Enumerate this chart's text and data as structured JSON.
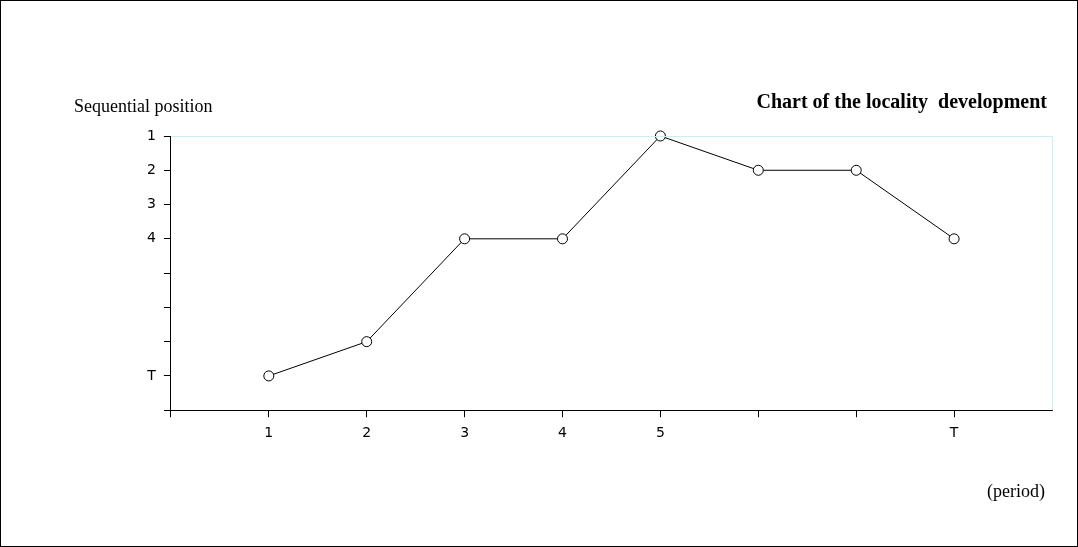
{
  "chart_data": {
    "type": "line",
    "title": "Chart of the locality  development",
    "xlabel": "(period)",
    "ylabel": "Sequential position",
    "x": [
      1,
      2,
      3,
      4,
      5,
      6,
      7,
      8
    ],
    "series": [
      {
        "color": "#000000",
        "values": [
          8,
          7,
          4,
          4,
          1,
          2,
          2,
          4
        ]
      }
    ],
    "xlim": [
      0,
      9
    ],
    "xticks": [
      {
        "value": 0,
        "label": null
      },
      1,
      2,
      3,
      4,
      5,
      {
        "value": 6,
        "label": null
      },
      {
        "value": 7,
        "label": null
      },
      {
        "value": 8,
        "label": "T"
      }
    ],
    "ylim": [
      9,
      1
    ],
    "yticks": [
      1,
      2,
      3,
      4,
      {
        "value": 5,
        "label": null
      },
      {
        "value": 6,
        "label": null
      },
      {
        "value": 7,
        "label": null
      },
      {
        "value": 8,
        "label": "T"
      },
      {
        "value": 9,
        "label": null
      }
    ],
    "grid": false,
    "legend": false,
    "marker": "circle",
    "line_style": "solid"
  }
}
